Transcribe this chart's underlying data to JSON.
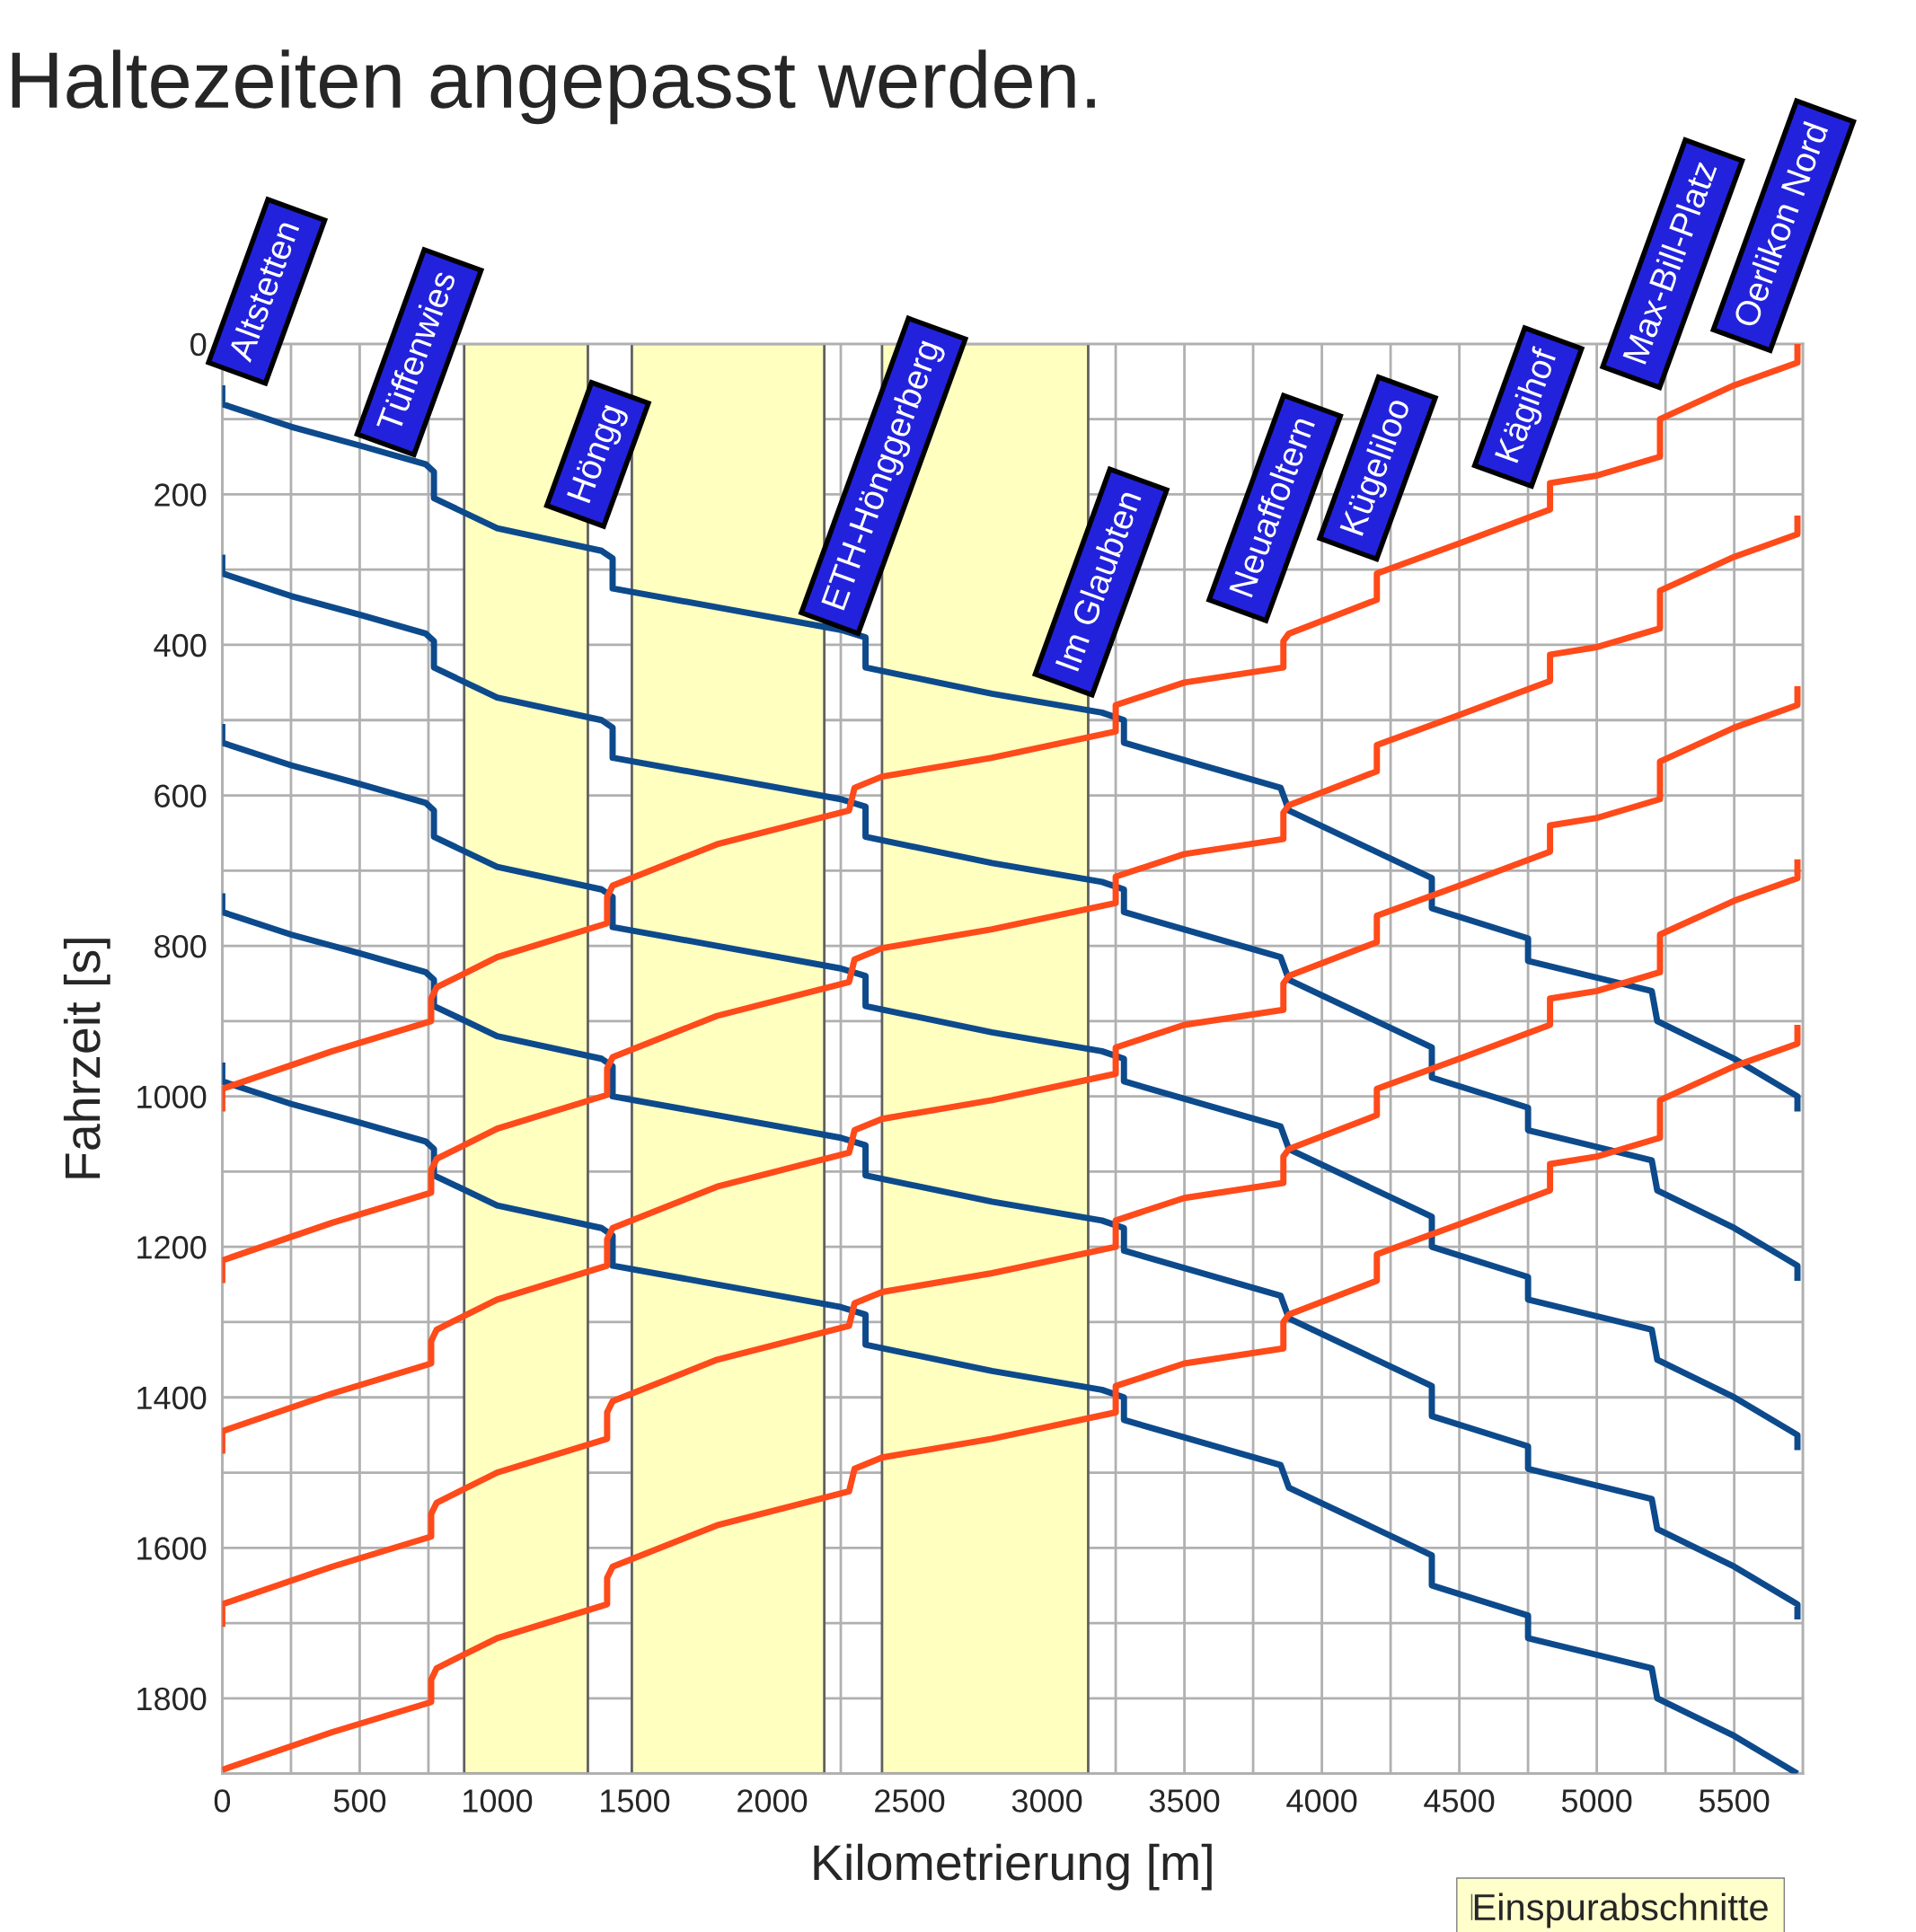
{
  "chart_data": {
    "type": "line",
    "title": "Haltezeiten angepasst werden.",
    "xlabel": "Kilometrierung [m]",
    "ylabel": "Fahrzeit [s]",
    "xlim": [
      0,
      5750
    ],
    "xticks": [
      0,
      500,
      1000,
      1500,
      2000,
      2500,
      3000,
      3500,
      4000,
      4500,
      5000,
      5500
    ],
    "ylim": [
      1900,
      0
    ],
    "yticks": [
      0,
      200,
      400,
      600,
      800,
      1000,
      1200,
      1400,
      1600,
      1800
    ],
    "grid": true,
    "legend": "bottom right",
    "line_style": "solid",
    "series": [
      {
        "color": "#0d4a8c",
        "x": [
          0,
          0,
          250,
          500,
          740,
          770,
          770,
          1000,
          1380,
          1420,
          1420,
          1800,
          2250,
          2340,
          2340,
          2800,
          3200,
          3280,
          3280,
          3850,
          3880,
          4400,
          4400,
          4750,
          4750,
          5200,
          5220,
          5500,
          5730,
          5730
        ],
        "values": [
          55,
          80,
          110,
          135,
          160,
          170,
          205,
          245,
          275,
          285,
          325,
          350,
          380,
          390,
          430,
          465,
          490,
          500,
          530,
          590,
          620,
          710,
          750,
          790,
          820,
          860,
          900,
          950,
          1000,
          1020
        ]
      },
      {
        "color": "#0d4a8c",
        "x": [
          0,
          0,
          250,
          500,
          740,
          770,
          770,
          1000,
          1380,
          1420,
          1420,
          1800,
          2250,
          2340,
          2340,
          2800,
          3200,
          3280,
          3280,
          3850,
          3880,
          4400,
          4400,
          4750,
          4750,
          5200,
          5220,
          5500,
          5730,
          5730
        ],
        "values": [
          280,
          305,
          335,
          360,
          385,
          395,
          430,
          470,
          500,
          510,
          550,
          575,
          605,
          615,
          655,
          690,
          715,
          725,
          755,
          815,
          845,
          935,
          975,
          1015,
          1045,
          1085,
          1125,
          1175,
          1225,
          1245
        ]
      },
      {
        "color": "#0d4a8c",
        "x": [
          0,
          0,
          250,
          500,
          740,
          770,
          770,
          1000,
          1380,
          1420,
          1420,
          1800,
          2250,
          2340,
          2340,
          2800,
          3200,
          3280,
          3280,
          3850,
          3880,
          4400,
          4400,
          4750,
          4750,
          5200,
          5220,
          5500,
          5730,
          5730
        ],
        "values": [
          505,
          530,
          560,
          585,
          610,
          620,
          655,
          695,
          725,
          735,
          775,
          800,
          830,
          840,
          880,
          915,
          940,
          950,
          980,
          1040,
          1070,
          1160,
          1200,
          1240,
          1270,
          1310,
          1350,
          1400,
          1450,
          1470
        ]
      },
      {
        "color": "#0d4a8c",
        "x": [
          0,
          0,
          250,
          500,
          740,
          770,
          770,
          1000,
          1380,
          1420,
          1420,
          1800,
          2250,
          2340,
          2340,
          2800,
          3200,
          3280,
          3280,
          3850,
          3880,
          4400,
          4400,
          4750,
          4750,
          5200,
          5220,
          5500,
          5730,
          5730
        ],
        "values": [
          730,
          755,
          785,
          810,
          835,
          845,
          880,
          920,
          950,
          960,
          1000,
          1025,
          1055,
          1065,
          1105,
          1140,
          1165,
          1175,
          1205,
          1265,
          1295,
          1385,
          1425,
          1465,
          1495,
          1535,
          1575,
          1625,
          1675,
          1695
        ]
      },
      {
        "color": "#0d4a8c",
        "x": [
          0,
          0,
          250,
          500,
          740,
          770,
          770,
          1000,
          1380,
          1420,
          1420,
          1800,
          2250,
          2340,
          2340,
          2800,
          3200,
          3280,
          3280,
          3850,
          3880,
          4400,
          4400,
          4750,
          4750,
          5200,
          5220,
          5500,
          5730
        ],
        "values": [
          955,
          980,
          1010,
          1035,
          1060,
          1070,
          1105,
          1145,
          1175,
          1185,
          1225,
          1250,
          1280,
          1290,
          1330,
          1365,
          1390,
          1400,
          1430,
          1490,
          1520,
          1610,
          1650,
          1690,
          1720,
          1760,
          1800,
          1850,
          1900
        ]
      },
      {
        "color": "#ff4a1a",
        "x": [
          5730,
          5730,
          5500,
          5350,
          5230,
          5230,
          5000,
          4830,
          4830,
          4500,
          4200,
          4200,
          3880,
          3860,
          3860,
          3500,
          3250,
          3250,
          2800,
          2400,
          2300,
          2280,
          1800,
          1420,
          1400,
          1400,
          1000,
          780,
          760,
          760,
          400,
          0,
          0
        ],
        "values": [
          0,
          25,
          55,
          80,
          100,
          150,
          175,
          185,
          220,
          265,
          305,
          340,
          385,
          395,
          430,
          450,
          480,
          515,
          550,
          575,
          590,
          620,
          665,
          720,
          735,
          770,
          815,
          855,
          870,
          900,
          940,
          990,
          1020
        ]
      },
      {
        "color": "#ff4a1a",
        "x": [
          5730,
          5730,
          5500,
          5350,
          5230,
          5230,
          5000,
          4830,
          4830,
          4500,
          4200,
          4200,
          3880,
          3860,
          3860,
          3500,
          3250,
          3250,
          2800,
          2400,
          2300,
          2280,
          1800,
          1420,
          1400,
          1400,
          1000,
          780,
          760,
          760,
          400,
          0,
          0
        ],
        "values": [
          228,
          253,
          283,
          308,
          328,
          378,
          403,
          413,
          448,
          493,
          533,
          568,
          613,
          623,
          658,
          678,
          708,
          743,
          778,
          803,
          818,
          848,
          893,
          948,
          963,
          998,
          1043,
          1083,
          1098,
          1128,
          1168,
          1218,
          1248
        ]
      },
      {
        "color": "#ff4a1a",
        "x": [
          5730,
          5730,
          5500,
          5350,
          5230,
          5230,
          5000,
          4830,
          4830,
          4500,
          4200,
          4200,
          3880,
          3860,
          3860,
          3500,
          3250,
          3250,
          2800,
          2400,
          2300,
          2280,
          1800,
          1420,
          1400,
          1400,
          1000,
          780,
          760,
          760,
          400,
          0,
          0
        ],
        "values": [
          455,
          480,
          510,
          535,
          555,
          605,
          630,
          640,
          675,
          720,
          760,
          795,
          840,
          850,
          885,
          905,
          935,
          970,
          1005,
          1030,
          1045,
          1075,
          1120,
          1175,
          1190,
          1225,
          1270,
          1310,
          1325,
          1355,
          1395,
          1445,
          1475
        ]
      },
      {
        "color": "#ff4a1a",
        "x": [
          5730,
          5730,
          5500,
          5350,
          5230,
          5230,
          5000,
          4830,
          4830,
          4500,
          4200,
          4200,
          3880,
          3860,
          3860,
          3500,
          3250,
          3250,
          2800,
          2400,
          2300,
          2280,
          1800,
          1420,
          1400,
          1400,
          1000,
          780,
          760,
          760,
          400,
          0,
          0
        ],
        "values": [
          685,
          710,
          740,
          765,
          785,
          835,
          860,
          870,
          905,
          950,
          990,
          1025,
          1070,
          1080,
          1115,
          1135,
          1165,
          1200,
          1235,
          1260,
          1275,
          1305,
          1350,
          1405,
          1420,
          1455,
          1500,
          1540,
          1555,
          1585,
          1625,
          1675,
          1705
        ]
      },
      {
        "color": "#ff4a1a",
        "x": [
          5730,
          5730,
          5500,
          5350,
          5230,
          5230,
          5000,
          4830,
          4830,
          4500,
          4200,
          4200,
          3880,
          3860,
          3860,
          3500,
          3250,
          3250,
          2800,
          2400,
          2300,
          2280,
          1800,
          1420,
          1400,
          1400,
          1000,
          780,
          760,
          760,
          400,
          0
        ],
        "values": [
          905,
          930,
          960,
          985,
          1005,
          1055,
          1080,
          1090,
          1125,
          1170,
          1210,
          1245,
          1290,
          1300,
          1335,
          1355,
          1385,
          1420,
          1455,
          1480,
          1495,
          1525,
          1570,
          1625,
          1640,
          1675,
          1720,
          1760,
          1775,
          1805,
          1845,
          1895
        ]
      }
    ],
    "bands": [
      {
        "axis": "x",
        "from": 880,
        "to": 1330,
        "label": "Einspurabschnitte",
        "color": "#ffffc0"
      },
      {
        "axis": "x",
        "from": 1490,
        "to": 2190,
        "color": "#ffffc0"
      },
      {
        "axis": "x",
        "from": 2400,
        "to": 3150,
        "color": "#ffffc0"
      }
    ],
    "annotations": [
      "Altstetten",
      "Tüffenwies",
      "Höngg",
      "ETH-Hönggerberg",
      "Im Glaubten",
      "Neuaffoltern",
      "Kügeliloo",
      "Kägihof",
      "Max-Bill-Platz",
      "Oerlikon Nord"
    ]
  }
}
